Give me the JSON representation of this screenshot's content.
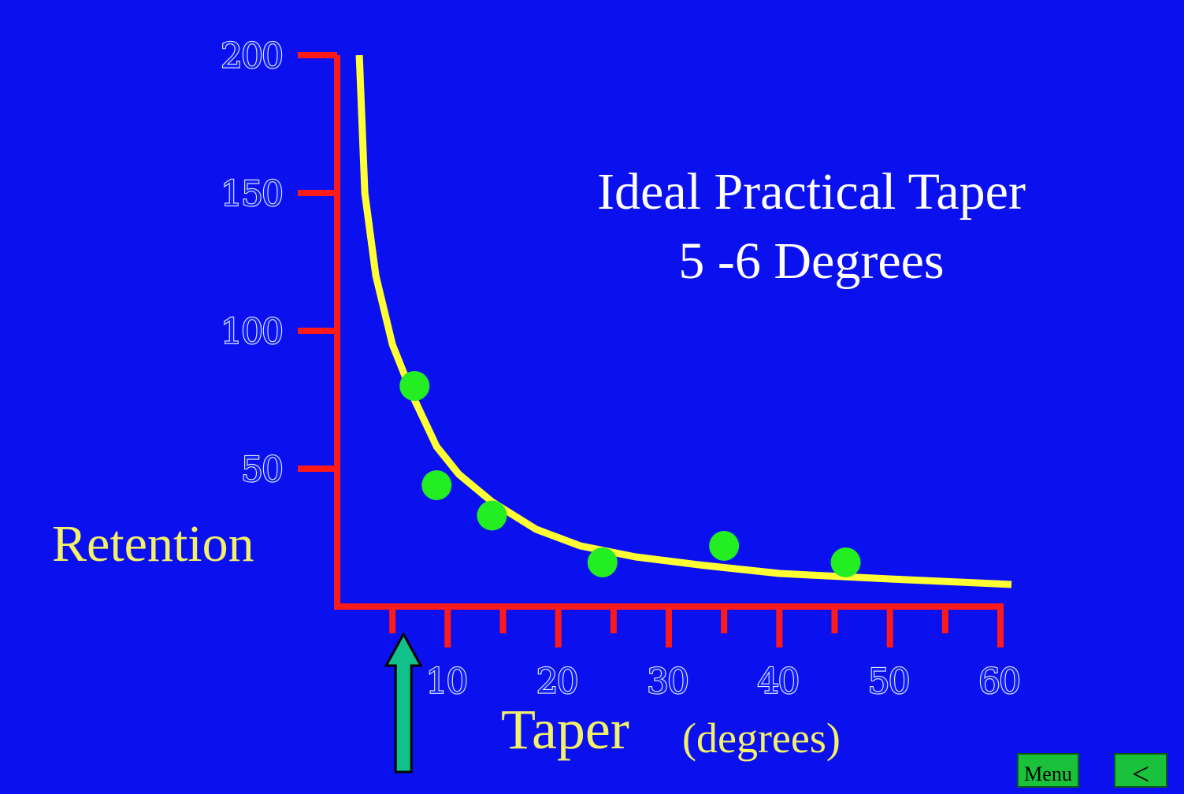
{
  "chart_data": {
    "type": "scatter",
    "title": "Ideal Practical Taper",
    "subtitle": "5 -6 Degrees",
    "xlabel": "Taper",
    "xlabel_unit": "(degrees)",
    "ylabel": "Retention",
    "xlim": [
      0,
      60
    ],
    "ylim": [
      0,
      200
    ],
    "x_ticks": [
      10,
      20,
      30,
      40,
      50,
      60
    ],
    "x_minor_ticks": [
      5,
      15,
      25,
      35,
      45,
      55
    ],
    "y_ticks": [
      50,
      100,
      150,
      200
    ],
    "points": [
      {
        "x": 7,
        "y": 80
      },
      {
        "x": 9,
        "y": 44
      },
      {
        "x": 14,
        "y": 33
      },
      {
        "x": 24,
        "y": 16
      },
      {
        "x": 35,
        "y": 22
      },
      {
        "x": 46,
        "y": 16
      }
    ],
    "curve": [
      [
        2,
        200
      ],
      [
        2.5,
        150
      ],
      [
        3.5,
        120
      ],
      [
        5,
        95
      ],
      [
        7,
        75
      ],
      [
        9,
        58
      ],
      [
        11,
        48
      ],
      [
        14,
        38
      ],
      [
        18,
        28
      ],
      [
        22,
        22
      ],
      [
        27,
        18
      ],
      [
        33,
        15
      ],
      [
        40,
        12
      ],
      [
        50,
        10
      ],
      [
        61,
        8
      ]
    ],
    "marker": {
      "x": 6,
      "label": ""
    },
    "colors": {
      "background": "#0b11ee",
      "axes": "#ff1a1a",
      "curve": "#ffff33",
      "points": "#22ee22",
      "arrow": "#12c08a",
      "tick_label_fill": "#1020ff",
      "tick_label_outline": "#e8ecff",
      "axis_title": "#f3f06a"
    },
    "grid": false,
    "legend": "none"
  },
  "nav": {
    "menu_label": "Menu",
    "back_label": "<"
  }
}
